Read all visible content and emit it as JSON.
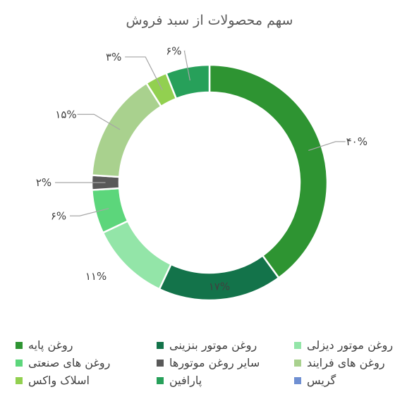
{
  "chart_data": {
    "type": "pie",
    "variant": "donut",
    "title": "سهم محصولات از سبد فروش",
    "categories": [
      "روغن پایه",
      "روغن موتور بنزینی",
      "روغن موتور دیزلی",
      "روغن های صنعتی",
      "سایر روغن موتورها",
      "روغن های فرایند",
      "اسلاک واکس",
      "پارافین",
      "گریس"
    ],
    "values": [
      40,
      17,
      11,
      6,
      2,
      15,
      3,
      6,
      0
    ],
    "data_labels": [
      "۴۰%",
      "۱۷%",
      "۱۱%",
      "۶%",
      "۲%",
      "۱۵%",
      "۳%",
      "۶%",
      ""
    ],
    "colors": [
      "#2e9432",
      "#13734a",
      "#93e5a8",
      "#5cd67b",
      "#595959",
      "#a9d18e",
      "#92d050",
      "#27a05a",
      "#6f8fd2"
    ],
    "legend_position": "bottom"
  }
}
